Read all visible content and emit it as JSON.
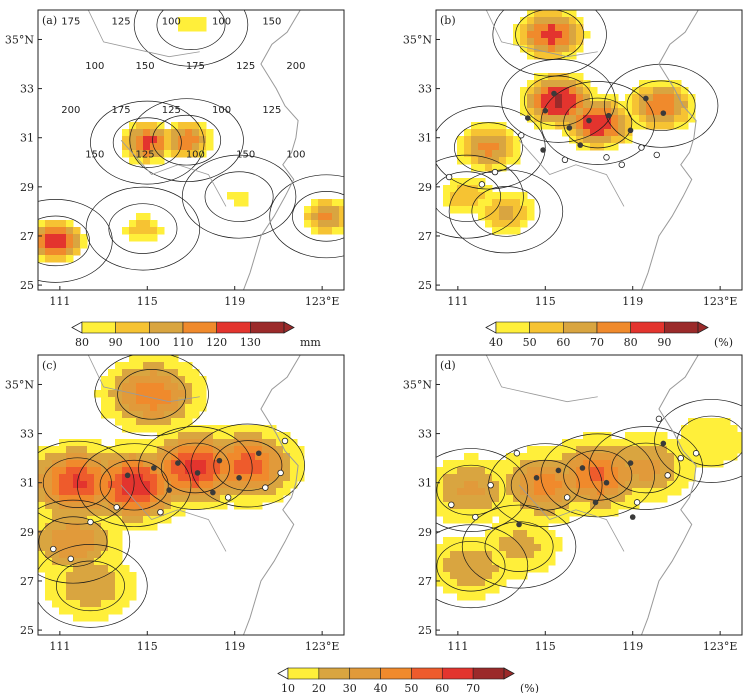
{
  "figure": {
    "panels": [
      "(a)",
      "(b)",
      "(c)",
      "(d)"
    ]
  },
  "chart_data": [
    {
      "type": "heatmap",
      "panel_label": "(a)",
      "title": "",
      "xlabel": "",
      "ylabel": "",
      "x_ticks": [
        "111",
        "115",
        "119",
        "123°E"
      ],
      "y_ticks": [
        "25",
        "27",
        "29",
        "31",
        "33",
        "35°N"
      ],
      "xlim": [
        110,
        124
      ],
      "ylim": [
        24.8,
        36.2
      ],
      "fill_levels": [
        80,
        90,
        100,
        110,
        120,
        130
      ],
      "fill_colors": [
        "#ffef3a",
        "#f6c333",
        "#d9a540",
        "#f08a2c",
        "#e3342e",
        "#9b2a2a"
      ],
      "colorbar_labels": [
        "80",
        "90",
        "100",
        "110",
        "120",
        "130"
      ],
      "colorbar_unit": "mm",
      "contour_labels": [
        "175",
        "125",
        "100",
        "100",
        "150",
        "100",
        "150",
        "175",
        "125",
        "200",
        "200",
        "175",
        "125",
        "100",
        "125",
        "150",
        "125",
        "100",
        "150",
        "100"
      ],
      "hotspots": [
        {
          "lon": 110.8,
          "lat": 26.8,
          "value": 128
        },
        {
          "lon": 115.0,
          "lat": 30.8,
          "value": 124
        },
        {
          "lon": 116.8,
          "lat": 30.9,
          "value": 118
        },
        {
          "lon": 114.8,
          "lat": 27.3,
          "value": 96
        },
        {
          "lon": 123.2,
          "lat": 27.8,
          "value": 112
        },
        {
          "lon": 117.0,
          "lat": 35.6,
          "value": 88
        },
        {
          "lon": 119.2,
          "lat": 28.6,
          "value": 85
        }
      ],
      "markers_open": [],
      "markers_filled": []
    },
    {
      "type": "heatmap",
      "panel_label": "(b)",
      "title": "",
      "xlabel": "",
      "ylabel": "",
      "x_ticks": [
        "111",
        "115",
        "119",
        "123°E"
      ],
      "y_ticks": [
        "25",
        "27",
        "29",
        "31",
        "33",
        "35°N"
      ],
      "xlim": [
        110,
        124
      ],
      "ylim": [
        24.8,
        36.2
      ],
      "fill_levels": [
        40,
        50,
        60,
        70,
        80,
        90
      ],
      "fill_colors": [
        "#ffef3a",
        "#f6c333",
        "#d9a540",
        "#f08a2c",
        "#e3342e",
        "#9b2a2a"
      ],
      "colorbar_labels": [
        "40",
        "50",
        "60",
        "70",
        "80",
        "90"
      ],
      "colorbar_unit": "(%)",
      "contour_labels": [],
      "hotspots": [
        {
          "lon": 115.6,
          "lat": 32.5,
          "value": 92
        },
        {
          "lon": 117.4,
          "lat": 31.6,
          "value": 90
        },
        {
          "lon": 115.2,
          "lat": 35.2,
          "value": 85
        },
        {
          "lon": 120.3,
          "lat": 32.3,
          "value": 80
        },
        {
          "lon": 112.4,
          "lat": 30.6,
          "value": 74
        },
        {
          "lon": 113.2,
          "lat": 28.0,
          "value": 62
        },
        {
          "lon": 111.4,
          "lat": 28.6,
          "value": 58
        }
      ],
      "markers_open": [
        {
          "lon": 110.6,
          "lat": 29.4
        },
        {
          "lon": 112.1,
          "lat": 29.1
        },
        {
          "lon": 112.7,
          "lat": 29.6
        },
        {
          "lon": 117.8,
          "lat": 30.2
        },
        {
          "lon": 118.5,
          "lat": 29.9
        },
        {
          "lon": 119.4,
          "lat": 30.6
        },
        {
          "lon": 120.1,
          "lat": 30.3
        },
        {
          "lon": 113.9,
          "lat": 31.1
        },
        {
          "lon": 115.9,
          "lat": 30.1
        }
      ],
      "markers_filled": [
        {
          "lon": 114.2,
          "lat": 31.8
        },
        {
          "lon": 115.0,
          "lat": 32.1
        },
        {
          "lon": 116.1,
          "lat": 31.4
        },
        {
          "lon": 117.0,
          "lat": 31.7
        },
        {
          "lon": 117.9,
          "lat": 31.9
        },
        {
          "lon": 118.9,
          "lat": 31.3
        },
        {
          "lon": 116.6,
          "lat": 30.7
        },
        {
          "lon": 114.9,
          "lat": 30.5
        },
        {
          "lon": 120.4,
          "lat": 32.0
        },
        {
          "lon": 119.6,
          "lat": 32.6
        },
        {
          "lon": 115.4,
          "lat": 32.8
        }
      ]
    },
    {
      "type": "heatmap",
      "panel_label": "(c)",
      "title": "",
      "xlabel": "",
      "ylabel": "",
      "x_ticks": [
        "111",
        "115",
        "119",
        "123°E"
      ],
      "y_ticks": [
        "25",
        "27",
        "29",
        "31",
        "33",
        "35°N"
      ],
      "xlim": [
        110,
        124
      ],
      "ylim": [
        24.8,
        36.2
      ],
      "fill_levels": [
        10,
        20,
        30,
        40,
        50,
        60,
        70
      ],
      "fill_colors": [
        "#ffef3a",
        "#d9a540",
        "#e19a3a",
        "#f08a2c",
        "#ee5b2c",
        "#e3342e",
        "#9b2a2a"
      ],
      "colorbar_labels": [
        "10",
        "20",
        "30",
        "40",
        "50",
        "60",
        "70"
      ],
      "colorbar_unit": "(%)",
      "contour_labels": [],
      "hotspots": [
        {
          "lon": 111.8,
          "lat": 31.0,
          "value": 62
        },
        {
          "lon": 114.4,
          "lat": 30.9,
          "value": 68
        },
        {
          "lon": 117.2,
          "lat": 31.6,
          "value": 66
        },
        {
          "lon": 119.6,
          "lat": 31.7,
          "value": 55
        },
        {
          "lon": 115.2,
          "lat": 34.6,
          "value": 48
        },
        {
          "lon": 111.6,
          "lat": 28.6,
          "value": 38
        },
        {
          "lon": 112.4,
          "lat": 26.8,
          "value": 30
        }
      ],
      "markers_open": [
        {
          "lon": 110.7,
          "lat": 28.3
        },
        {
          "lon": 111.5,
          "lat": 27.9
        },
        {
          "lon": 112.4,
          "lat": 29.4
        },
        {
          "lon": 113.6,
          "lat": 30.0
        },
        {
          "lon": 115.6,
          "lat": 29.8
        },
        {
          "lon": 118.7,
          "lat": 30.4
        },
        {
          "lon": 120.4,
          "lat": 30.8
        },
        {
          "lon": 121.1,
          "lat": 31.4
        },
        {
          "lon": 121.3,
          "lat": 32.7
        }
      ],
      "markers_filled": [
        {
          "lon": 114.1,
          "lat": 31.3
        },
        {
          "lon": 115.3,
          "lat": 31.6
        },
        {
          "lon": 116.4,
          "lat": 31.8
        },
        {
          "lon": 117.3,
          "lat": 31.4
        },
        {
          "lon": 118.3,
          "lat": 31.9
        },
        {
          "lon": 119.2,
          "lat": 31.2
        },
        {
          "lon": 120.1,
          "lat": 32.2
        },
        {
          "lon": 118.0,
          "lat": 30.6
        },
        {
          "lon": 116.0,
          "lat": 30.7
        }
      ]
    },
    {
      "type": "heatmap",
      "panel_label": "(d)",
      "title": "",
      "xlabel": "",
      "ylabel": "",
      "x_ticks": [
        "111",
        "115",
        "119",
        "123°E"
      ],
      "y_ticks": [
        "25",
        "27",
        "29",
        "31",
        "33",
        "35°N"
      ],
      "xlim": [
        110,
        124
      ],
      "ylim": [
        24.8,
        36.2
      ],
      "fill_levels": [
        10,
        20,
        30,
        40,
        50,
        60,
        70
      ],
      "fill_colors": [
        "#ffef3a",
        "#d9a540",
        "#e19a3a",
        "#f08a2c",
        "#ee5b2c",
        "#e3342e",
        "#9b2a2a"
      ],
      "colorbar_labels": [
        "10",
        "20",
        "30",
        "40",
        "50",
        "60",
        "70"
      ],
      "colorbar_unit": "(%)",
      "contour_labels": [],
      "hotspots": [
        {
          "lon": 115.0,
          "lat": 30.9,
          "value": 44
        },
        {
          "lon": 117.4,
          "lat": 31.3,
          "value": 52
        },
        {
          "lon": 111.6,
          "lat": 30.7,
          "value": 32
        },
        {
          "lon": 111.6,
          "lat": 27.6,
          "value": 28
        },
        {
          "lon": 119.6,
          "lat": 31.6,
          "value": 34
        },
        {
          "lon": 113.8,
          "lat": 28.4,
          "value": 24
        },
        {
          "lon": 122.6,
          "lat": 32.7,
          "value": 18
        }
      ],
      "markers_open": [
        {
          "lon": 110.7,
          "lat": 30.1
        },
        {
          "lon": 111.8,
          "lat": 29.6
        },
        {
          "lon": 112.5,
          "lat": 30.9
        },
        {
          "lon": 113.7,
          "lat": 32.2
        },
        {
          "lon": 116.0,
          "lat": 30.4
        },
        {
          "lon": 119.2,
          "lat": 30.2
        },
        {
          "lon": 120.6,
          "lat": 31.3
        },
        {
          "lon": 121.2,
          "lat": 32.0
        },
        {
          "lon": 121.9,
          "lat": 32.2
        },
        {
          "lon": 120.2,
          "lat": 33.6
        }
      ],
      "markers_filled": [
        {
          "lon": 114.6,
          "lat": 31.2
        },
        {
          "lon": 115.6,
          "lat": 31.5
        },
        {
          "lon": 116.7,
          "lat": 31.6
        },
        {
          "lon": 117.8,
          "lat": 31.0
        },
        {
          "lon": 118.9,
          "lat": 31.8
        },
        {
          "lon": 120.4,
          "lat": 32.6
        },
        {
          "lon": 113.8,
          "lat": 29.3
        },
        {
          "lon": 119.0,
          "lat": 29.6
        },
        {
          "lon": 117.3,
          "lat": 30.2
        }
      ]
    }
  ],
  "colors": {
    "coast": "#9a9a9a",
    "contour": "#1a1a1a",
    "marker_filled": "#3a3a3a"
  }
}
